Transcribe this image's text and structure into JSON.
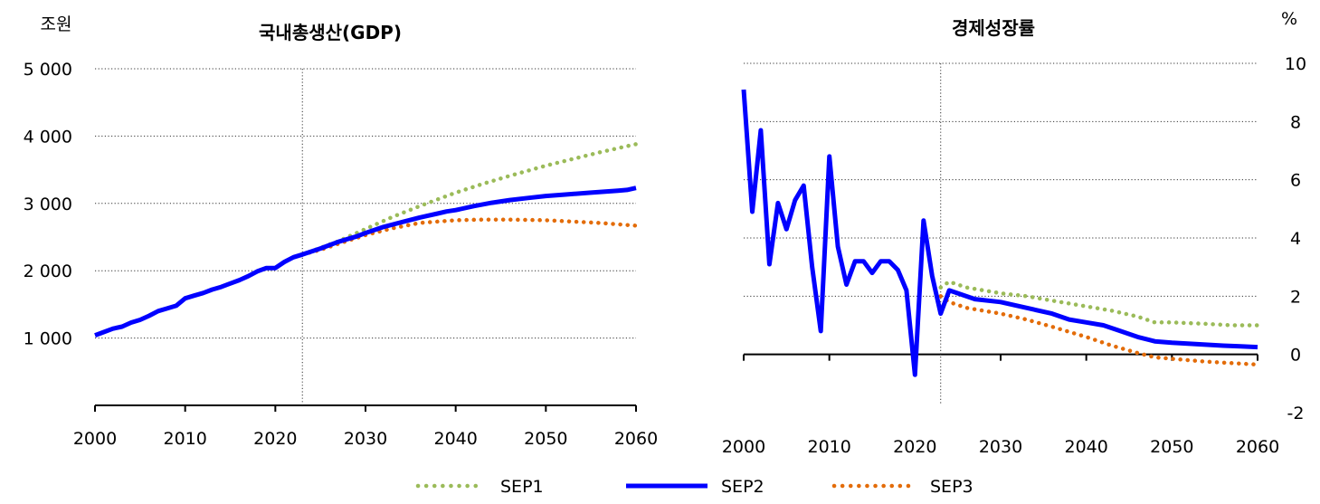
{
  "chart_data": [
    {
      "type": "line",
      "title": "국내총생산(GDP)",
      "unit": "조원",
      "xlim": [
        2000,
        2060
      ],
      "ylim": [
        0,
        5000
      ],
      "x_ticks": [
        "2000",
        "2010",
        "2020",
        "2030",
        "2040",
        "2050",
        "2060"
      ],
      "y_ticks": [
        "1 000",
        "2 000",
        "3 000",
        "4 000",
        "5 000"
      ],
      "y_tick_values": [
        1000,
        2000,
        3000,
        4000,
        5000
      ],
      "grid": "horizontal dotted",
      "divider_x": 2023,
      "series": [
        {
          "name": "SEP1",
          "color": "#9BBB59",
          "style": "dotted",
          "x": [
            2023,
            2025,
            2027,
            2030,
            2033,
            2036,
            2040,
            2043,
            2046,
            2050,
            2053,
            2056,
            2060
          ],
          "y": [
            2240,
            2340,
            2440,
            2620,
            2800,
            2960,
            3160,
            3290,
            3410,
            3560,
            3660,
            3760,
            3880
          ]
        },
        {
          "name": "SEP2",
          "color": "#0000FF",
          "style": "solid",
          "x": [
            2000,
            2001,
            2002,
            2003,
            2004,
            2005,
            2006,
            2007,
            2008,
            2009,
            2010,
            2011,
            2012,
            2013,
            2014,
            2015,
            2016,
            2017,
            2018,
            2019,
            2020,
            2021,
            2022,
            2023,
            2025,
            2027,
            2029,
            2030,
            2032,
            2034,
            2036,
            2038,
            2039,
            2040,
            2042,
            2044,
            2046,
            2048,
            2050,
            2052,
            2055,
            2058,
            2059,
            2060
          ],
          "y": [
            1040,
            1090,
            1140,
            1170,
            1230,
            1270,
            1330,
            1400,
            1440,
            1480,
            1590,
            1630,
            1670,
            1720,
            1760,
            1810,
            1860,
            1920,
            1990,
            2040,
            2040,
            2130,
            2200,
            2240,
            2330,
            2430,
            2510,
            2560,
            2650,
            2720,
            2790,
            2850,
            2880,
            2900,
            2960,
            3010,
            3050,
            3080,
            3110,
            3130,
            3160,
            3190,
            3200,
            3230
          ]
        },
        {
          "name": "SEP3",
          "color": "#E36C09",
          "style": "dotted",
          "x": [
            2023,
            2025,
            2027,
            2030,
            2033,
            2036,
            2040,
            2043,
            2046,
            2050,
            2053,
            2056,
            2060
          ],
          "y": [
            2240,
            2310,
            2400,
            2530,
            2630,
            2710,
            2750,
            2760,
            2760,
            2750,
            2730,
            2710,
            2670
          ]
        }
      ]
    },
    {
      "type": "line",
      "title": "경제성장률",
      "unit": "%",
      "xlim": [
        2000,
        2060
      ],
      "ylim": [
        -2,
        10
      ],
      "x_ticks": [
        "2000",
        "2010",
        "2020",
        "2030",
        "2040",
        "2050",
        "2060"
      ],
      "y_ticks": [
        "-2",
        "0",
        "2",
        "4",
        "6",
        "8",
        "10"
      ],
      "y_tick_values": [
        -2,
        0,
        2,
        4,
        6,
        8,
        10
      ],
      "grid": "horizontal dotted",
      "divider_x": 2023,
      "series": [
        {
          "name": "SEP1",
          "color": "#9BBB59",
          "style": "dotted",
          "x": [
            2023,
            2024,
            2026,
            2028,
            2030,
            2033,
            2036,
            2040,
            2043,
            2046,
            2048,
            2050,
            2054,
            2057,
            2060
          ],
          "y": [
            2.3,
            2.5,
            2.3,
            2.2,
            2.1,
            2.0,
            1.85,
            1.65,
            1.5,
            1.3,
            1.1,
            1.1,
            1.05,
            1.0,
            1.0
          ]
        },
        {
          "name": "SEP2",
          "color": "#0000FF",
          "style": "solid",
          "x": [
            2000,
            2001,
            2002,
            2003,
            2004,
            2005,
            2006,
            2007,
            2008,
            2009,
            2010,
            2011,
            2012,
            2013,
            2014,
            2015,
            2016,
            2017,
            2018,
            2019,
            2020,
            2021,
            2022,
            2023,
            2024,
            2025,
            2027,
            2030,
            2033,
            2036,
            2038,
            2040,
            2042,
            2044,
            2046,
            2048,
            2050,
            2053,
            2056,
            2058,
            2060
          ],
          "y": [
            9.1,
            4.9,
            7.7,
            3.1,
            5.2,
            4.3,
            5.3,
            5.8,
            3.0,
            0.8,
            6.8,
            3.7,
            2.4,
            3.2,
            3.2,
            2.8,
            3.2,
            3.2,
            2.9,
            2.2,
            -0.7,
            4.6,
            2.7,
            1.4,
            2.2,
            2.1,
            1.9,
            1.8,
            1.6,
            1.4,
            1.2,
            1.1,
            1.0,
            0.8,
            0.6,
            0.45,
            0.4,
            0.35,
            0.3,
            0.28,
            0.25
          ]
        },
        {
          "name": "SEP3",
          "color": "#E36C09",
          "style": "dotted",
          "x": [
            2023,
            2024,
            2026,
            2028,
            2030,
            2033,
            2036,
            2040,
            2043,
            2046,
            2048,
            2050,
            2054,
            2057,
            2060
          ],
          "y": [
            2.0,
            1.8,
            1.6,
            1.5,
            1.4,
            1.2,
            0.95,
            0.6,
            0.3,
            0.05,
            -0.1,
            -0.15,
            -0.25,
            -0.3,
            -0.35
          ]
        }
      ]
    }
  ],
  "legend": [
    {
      "name": "SEP1",
      "color": "#9BBB59",
      "style": "dotted"
    },
    {
      "name": "SEP2",
      "color": "#0000FF",
      "style": "solid"
    },
    {
      "name": "SEP3",
      "color": "#E36C09",
      "style": "dotted"
    }
  ]
}
